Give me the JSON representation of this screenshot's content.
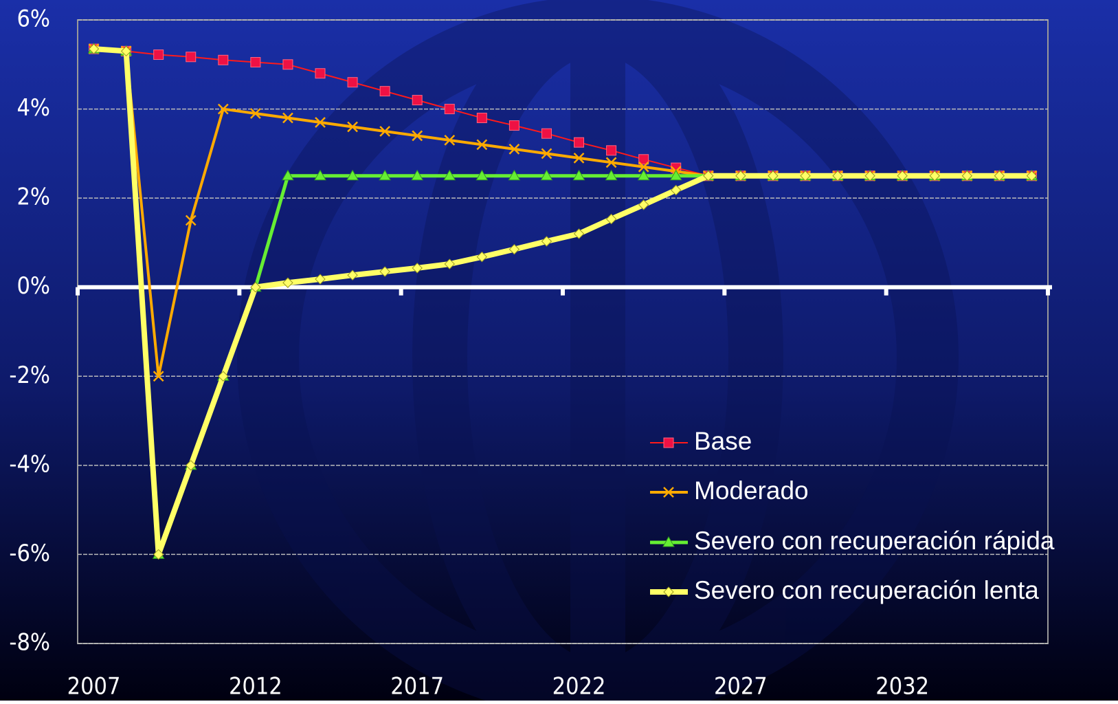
{
  "chart_data": {
    "type": "line",
    "categories": [
      "2007",
      null,
      null,
      null,
      null,
      "2012",
      null,
      null,
      null,
      null,
      "2017",
      null,
      null,
      null,
      null,
      "2022",
      null,
      null,
      null,
      null,
      "2027",
      null,
      null,
      null,
      null,
      "2032",
      null,
      null,
      null,
      null
    ],
    "ylim": [
      -8,
      6
    ],
    "yticks": [
      {
        "value": -8,
        "label": "-8%"
      },
      {
        "value": -6,
        "label": "-6%"
      },
      {
        "value": -4,
        "label": "-4%"
      },
      {
        "value": -2,
        "label": "-2%"
      },
      {
        "value": 0,
        "label": "0%"
      },
      {
        "value": 2,
        "label": "2%"
      },
      {
        "value": 4,
        "label": "4%"
      },
      {
        "value": 6,
        "label": "6%"
      }
    ],
    "grid": true,
    "legend": "lower-right",
    "series": [
      {
        "name": "Base",
        "color": "#ff1a1a",
        "marker": "square",
        "values": [
          5.35,
          5.3,
          5.22,
          5.17,
          5.1,
          5.05,
          5.0,
          4.8,
          4.6,
          4.4,
          4.2,
          4.0,
          3.8,
          3.63,
          3.45,
          3.25,
          3.07,
          2.87,
          2.68,
          2.5,
          2.5,
          2.5,
          2.5,
          2.5,
          2.5,
          2.5,
          2.5,
          2.5,
          2.5,
          2.5
        ]
      },
      {
        "name": "Moderado",
        "color": "#ffaa00",
        "marker": "x",
        "values": [
          5.35,
          5.3,
          -2,
          1.5,
          4.0,
          3.9,
          3.8,
          3.7,
          3.6,
          3.5,
          3.4,
          3.3,
          3.2,
          3.1,
          3.0,
          2.9,
          2.8,
          2.7,
          2.6,
          2.5,
          2.5,
          2.5,
          2.5,
          2.5,
          2.5,
          2.5,
          2.5,
          2.5,
          2.5,
          2.5
        ]
      },
      {
        "name": "Severo con recuperación rápida",
        "color": "#66ee33",
        "marker": "triangle",
        "values": [
          5.35,
          5.3,
          -6,
          -4,
          -2,
          0,
          2.5,
          2.5,
          2.5,
          2.5,
          2.5,
          2.5,
          2.5,
          2.5,
          2.5,
          2.5,
          2.5,
          2.5,
          2.5,
          2.5,
          2.5,
          2.5,
          2.5,
          2.5,
          2.5,
          2.5,
          2.5,
          2.5,
          2.5,
          2.5
        ]
      },
      {
        "name": "Severo con recuperación lenta",
        "color": "#ffff66",
        "marker": "diamond",
        "values": [
          5.35,
          5.3,
          -6,
          -4,
          -2,
          0,
          0.1,
          0.18,
          0.27,
          0.35,
          0.43,
          0.52,
          0.68,
          0.85,
          1.03,
          1.2,
          1.53,
          1.85,
          2.18,
          2.5,
          2.5,
          2.5,
          2.5,
          2.5,
          2.5,
          2.5,
          2.5,
          2.5,
          2.5,
          2.5
        ]
      }
    ]
  }
}
